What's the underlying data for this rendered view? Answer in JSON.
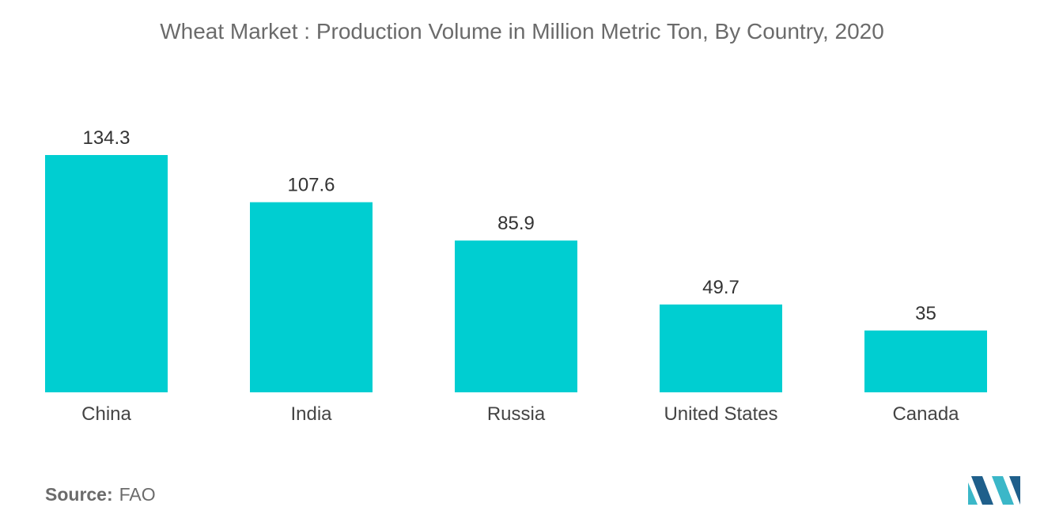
{
  "chart_data": {
    "type": "bar",
    "title": "Wheat Market : Production Volume in Million Metric Ton, By Country, 2020",
    "xlabel": "",
    "ylabel": "",
    "categories": [
      "China",
      "India",
      "Russia",
      "United States",
      "Canada"
    ],
    "values": [
      134.3,
      107.6,
      85.9,
      49.7,
      35
    ],
    "value_labels": [
      "134.3",
      "107.6",
      "85.9",
      "49.7",
      "35"
    ],
    "ylim": [
      0,
      134.3
    ],
    "grid": false,
    "legend": "none",
    "bar_color": "#00CED1"
  },
  "footer": {
    "source_label": "Source:",
    "source_value": "FAO"
  },
  "colors": {
    "logo_dark": "#1f5f8b",
    "logo_light": "#3bb7c8"
  }
}
